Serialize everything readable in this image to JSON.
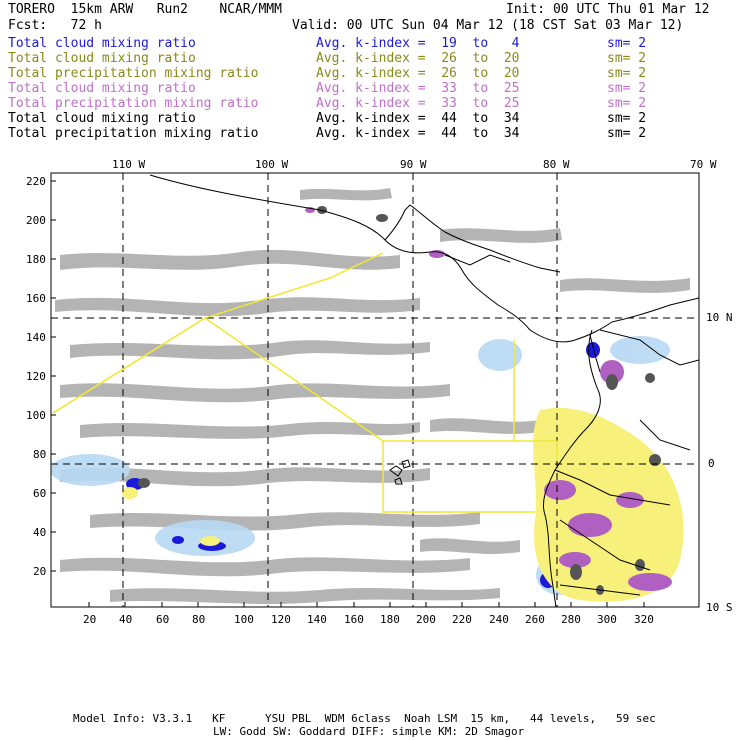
{
  "header": {
    "model": "TORERO  15km ARW   Run2    NCAR/MMM",
    "init": "Init: 00 UTC Thu 01 Mar 12",
    "fcst": "Fcst:   72 h",
    "valid": "Valid: 00 UTC Sun 04 Mar 12 (18 CST Sat 03 Mar 12)"
  },
  "legend": [
    {
      "field": "Total cloud mixing ratio",
      "kidx": "Avg. k-index =  19  to   4",
      "sm": "sm= 2",
      "color": "#1a1ad8"
    },
    {
      "field": "Total cloud mixing ratio",
      "kidx": "Avg. k-index =  26  to  20",
      "sm": "sm= 2",
      "color": "#8a8a1a"
    },
    {
      "field": "Total precipitation mixing ratio",
      "kidx": "Avg. k-index =  26  to  20",
      "sm": "sm= 2",
      "color": "#8a8a1a"
    },
    {
      "field": "Total cloud mixing ratio",
      "kidx": "Avg. k-index =  33  to  25",
      "sm": "sm= 2",
      "color": "#c070c8"
    },
    {
      "field": "Total precipitation mixing ratio",
      "kidx": "Avg. k-index =  33  to  25",
      "sm": "sm= 2",
      "color": "#c070c8"
    },
    {
      "field": "Total cloud mixing ratio",
      "kidx": "Avg. k-index =  44  to  34",
      "sm": "sm= 2",
      "color": "#000000"
    },
    {
      "field": "Total precipitation mixing ratio",
      "kidx": "Avg. k-index =  44  to  34",
      "sm": "sm= 2",
      "color": "#000000"
    }
  ],
  "map": {
    "top_lon_labels": [
      "110 W",
      "100 W",
      "90 W",
      "80 W",
      "70 W"
    ],
    "right_lat_labels": [
      "10 N",
      "0",
      "10 S"
    ],
    "left_y_ticks": [
      "220",
      "200",
      "180",
      "160",
      "140",
      "120",
      "100",
      "80",
      "60",
      "40",
      "20"
    ],
    "bottom_x_ticks": [
      "20",
      "40",
      "60",
      "80",
      "100",
      "120",
      "140",
      "160",
      "180",
      "200",
      "220",
      "240",
      "260",
      "280",
      "300",
      "320"
    ]
  },
  "footer": {
    "line1": "Model Info: V3.3.1   KF      YSU PBL  WDM 6class  Noah LSM  15 km,   44 levels,   59 sec",
    "line2": "LW: Godd SW: Goddard DIFF: simple KM: 2D Smagor"
  }
}
